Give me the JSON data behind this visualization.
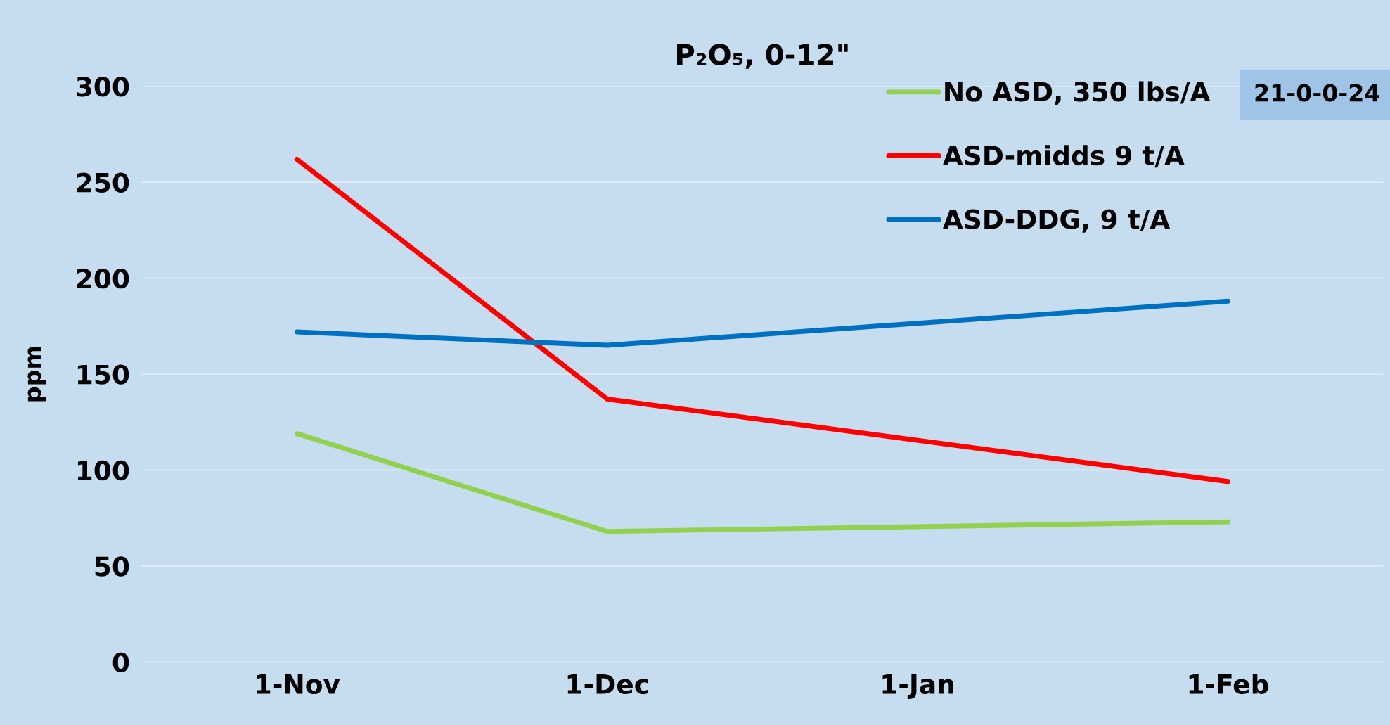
{
  "chart_data": {
    "type": "line",
    "title": "P₂O₅, 0-12\"",
    "ylabel": "ppm",
    "categories": [
      "1-Nov",
      "1-Dec",
      "1-Jan",
      "1-Feb"
    ],
    "series": [
      {
        "name": "No ASD, 350 lbs/A",
        "color": "#92d050",
        "values": [
          119,
          68,
          null,
          73
        ]
      },
      {
        "name": "ASD-midds 9 t/A",
        "color": "#ff0000",
        "values": [
          262,
          137,
          null,
          94
        ]
      },
      {
        "name": "ASD-DDG, 9 t/A",
        "color": "#0070c0",
        "values": [
          172,
          165,
          null,
          188
        ]
      }
    ],
    "ylim": [
      0,
      300
    ],
    "yticks": [
      0,
      50,
      100,
      150,
      200,
      250,
      300
    ],
    "grid": "y",
    "legend": "top right",
    "marker": "none",
    "line_style": "solid",
    "annotations": [
      "21-0-0-24"
    ]
  }
}
